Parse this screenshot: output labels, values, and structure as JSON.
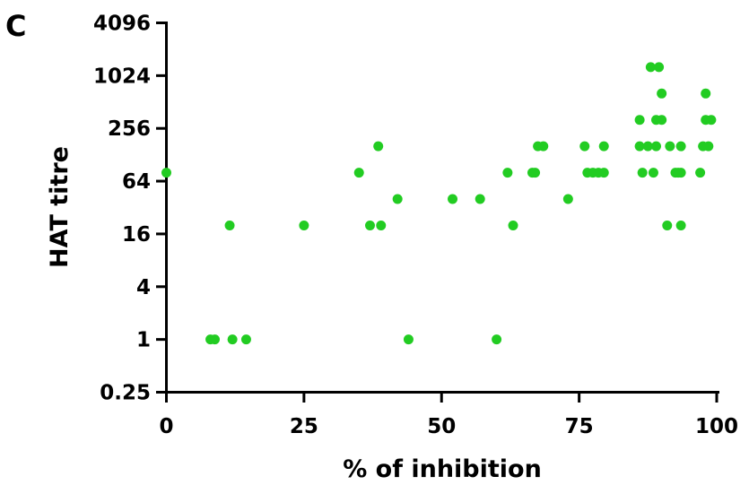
{
  "panel_label": "C",
  "chart_data": {
    "type": "scatter",
    "xlabel": "% of inhibition",
    "ylabel": "HAT titre",
    "xlim": [
      0,
      100
    ],
    "ylim": [
      0.25,
      4096
    ],
    "yscale": "log2",
    "xticks": [
      0,
      25,
      50,
      75,
      100
    ],
    "yticks": [
      0.25,
      1,
      4,
      16,
      64,
      256,
      1024,
      4096
    ],
    "ytick_labels": [
      "0.25",
      "1",
      "4",
      "16",
      "64",
      "256",
      "1024",
      "4096"
    ],
    "xtick_labels": [
      "0",
      "25",
      "50",
      "75",
      "100"
    ],
    "marker_color": "#22cc22",
    "grid": false,
    "points": [
      {
        "x": 0,
        "y": 80
      },
      {
        "x": 8,
        "y": 1
      },
      {
        "x": 8.8,
        "y": 1
      },
      {
        "x": 12,
        "y": 1
      },
      {
        "x": 14.5,
        "y": 1
      },
      {
        "x": 11.5,
        "y": 20
      },
      {
        "x": 25,
        "y": 20
      },
      {
        "x": 35,
        "y": 80
      },
      {
        "x": 37,
        "y": 20
      },
      {
        "x": 39,
        "y": 20
      },
      {
        "x": 38.5,
        "y": 160
      },
      {
        "x": 42,
        "y": 40
      },
      {
        "x": 44,
        "y": 1
      },
      {
        "x": 52,
        "y": 40
      },
      {
        "x": 57,
        "y": 40
      },
      {
        "x": 60,
        "y": 1
      },
      {
        "x": 62,
        "y": 80
      },
      {
        "x": 63,
        "y": 20
      },
      {
        "x": 66.5,
        "y": 80
      },
      {
        "x": 67,
        "y": 80
      },
      {
        "x": 67.5,
        "y": 160
      },
      {
        "x": 68.5,
        "y": 160
      },
      {
        "x": 73,
        "y": 40
      },
      {
        "x": 76,
        "y": 160
      },
      {
        "x": 76.5,
        "y": 80
      },
      {
        "x": 77.5,
        "y": 80
      },
      {
        "x": 78.5,
        "y": 80
      },
      {
        "x": 79.5,
        "y": 80
      },
      {
        "x": 79.5,
        "y": 160
      },
      {
        "x": 86,
        "y": 320
      },
      {
        "x": 86,
        "y": 160
      },
      {
        "x": 86.5,
        "y": 80
      },
      {
        "x": 87.5,
        "y": 160
      },
      {
        "x": 88,
        "y": 1280
      },
      {
        "x": 88.5,
        "y": 80
      },
      {
        "x": 89,
        "y": 160
      },
      {
        "x": 89,
        "y": 320
      },
      {
        "x": 89.5,
        "y": 1280
      },
      {
        "x": 90,
        "y": 640
      },
      {
        "x": 90,
        "y": 320
      },
      {
        "x": 91,
        "y": 20
      },
      {
        "x": 91.5,
        "y": 160
      },
      {
        "x": 92.5,
        "y": 80
      },
      {
        "x": 93,
        "y": 80
      },
      {
        "x": 93.5,
        "y": 20
      },
      {
        "x": 93.5,
        "y": 160
      },
      {
        "x": 93.5,
        "y": 80
      },
      {
        "x": 97,
        "y": 80
      },
      {
        "x": 97.5,
        "y": 160
      },
      {
        "x": 98,
        "y": 320
      },
      {
        "x": 98,
        "y": 640
      },
      {
        "x": 98.5,
        "y": 160
      },
      {
        "x": 99,
        "y": 320
      }
    ]
  }
}
